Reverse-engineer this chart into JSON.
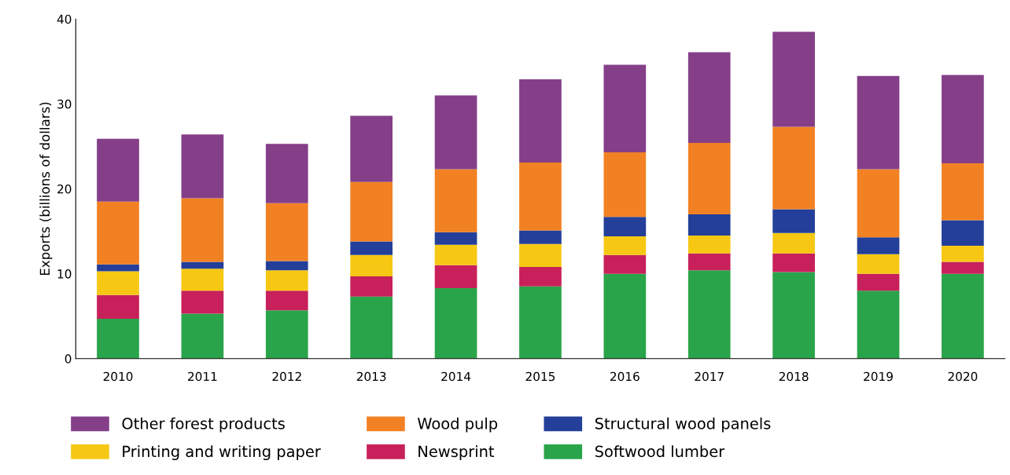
{
  "chart_data": {
    "type": "bar",
    "stacked": true,
    "ylabel": "Exports (billions of dollars)",
    "categories": [
      "2010",
      "2011",
      "2012",
      "2013",
      "2014",
      "2015",
      "2016",
      "2017",
      "2018",
      "2019",
      "2020"
    ],
    "ylim": [
      0,
      40
    ],
    "yticks": [
      0,
      10,
      20,
      30,
      40
    ],
    "grid": false,
    "legend": "bottom",
    "series": [
      {
        "name": "Softwood lumber",
        "color": "#2aa44a",
        "values": [
          4.7,
          5.3,
          5.7,
          7.3,
          8.3,
          8.5,
          10.0,
          10.4,
          10.2,
          8.0,
          10.0
        ]
      },
      {
        "name": "Newsprint",
        "color": "#c8205a",
        "values": [
          2.8,
          2.7,
          2.3,
          2.4,
          2.7,
          2.3,
          2.2,
          2.0,
          2.2,
          2.0,
          1.4
        ]
      },
      {
        "name": "Printing and writing paper",
        "color": "#f6c813",
        "values": [
          2.8,
          2.6,
          2.4,
          2.5,
          2.4,
          2.7,
          2.2,
          2.1,
          2.4,
          2.3,
          1.9
        ]
      },
      {
        "name": "Structural wood panels",
        "color": "#233f99",
        "values": [
          0.8,
          0.8,
          1.1,
          1.6,
          1.5,
          1.6,
          2.3,
          2.5,
          2.8,
          2.0,
          3.0
        ]
      },
      {
        "name": "Wood pulp",
        "color": "#f28123",
        "values": [
          7.4,
          7.5,
          6.8,
          7.0,
          7.4,
          8.0,
          7.6,
          8.4,
          9.7,
          8.0,
          6.7
        ]
      },
      {
        "name": "Other forest products",
        "color": "#843f88",
        "values": [
          7.4,
          7.5,
          7.0,
          7.8,
          8.7,
          9.8,
          10.3,
          10.7,
          11.2,
          11.0,
          10.4
        ]
      }
    ]
  }
}
